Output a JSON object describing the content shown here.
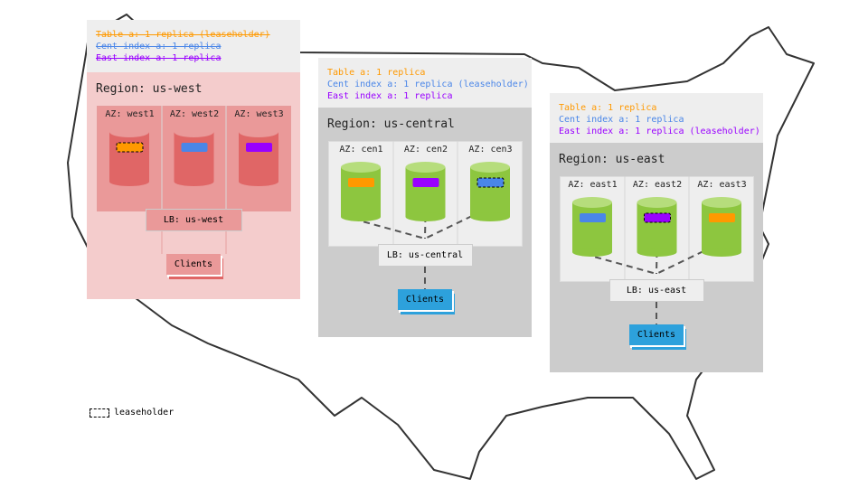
{
  "colors": {
    "table": "#ff9900",
    "cent_index": "#4a86e8",
    "east_index": "#9900ff"
  },
  "regions": [
    {
      "id": "us-west",
      "title": "Region: us-west",
      "struck": true,
      "replicas": [
        {
          "text": "Table a: 1 replica (leaseholder)",
          "kind": "table"
        },
        {
          "text": "Cent index a: 1 replica",
          "kind": "cent_index"
        },
        {
          "text": "East index a: 1 replica",
          "kind": "east_index"
        }
      ],
      "azs": [
        {
          "label": "AZ: west1",
          "range": "table",
          "leaseholder": true
        },
        {
          "label": "AZ: west2",
          "range": "cent_index",
          "leaseholder": false
        },
        {
          "label": "AZ: west3",
          "range": "east_index",
          "leaseholder": false
        }
      ],
      "lb": "LB: us-west",
      "clients": "Clients",
      "theme": "red"
    },
    {
      "id": "us-central",
      "title": "Region: us-central",
      "struck": false,
      "replicas": [
        {
          "text": "Table a: 1 replica",
          "kind": "table"
        },
        {
          "text": "Cent index a: 1 replica (leaseholder)",
          "kind": "cent_index"
        },
        {
          "text": "East index a: 1 replica",
          "kind": "east_index"
        }
      ],
      "azs": [
        {
          "label": "AZ: cen1",
          "range": "table",
          "leaseholder": false
        },
        {
          "label": "AZ: cen2",
          "range": "east_index",
          "leaseholder": false
        },
        {
          "label": "AZ: cen3",
          "range": "cent_index",
          "leaseholder": true
        }
      ],
      "lb": "LB: us-central",
      "clients": "Clients",
      "theme": "green"
    },
    {
      "id": "us-east",
      "title": "Region: us-east",
      "struck": false,
      "replicas": [
        {
          "text": "Table a: 1 replica",
          "kind": "table"
        },
        {
          "text": "Cent index a: 1 replica",
          "kind": "cent_index"
        },
        {
          "text": "East index a: 1 replica (leaseholder)",
          "kind": "east_index"
        }
      ],
      "azs": [
        {
          "label": "AZ: east1",
          "range": "cent_index",
          "leaseholder": false
        },
        {
          "label": "AZ: east2",
          "range": "east_index",
          "leaseholder": true
        },
        {
          "label": "AZ: east3",
          "range": "table",
          "leaseholder": false
        }
      ],
      "lb": "LB: us-east",
      "clients": "Clients",
      "theme": "green"
    }
  ],
  "legend": {
    "label": "leaseholder"
  }
}
